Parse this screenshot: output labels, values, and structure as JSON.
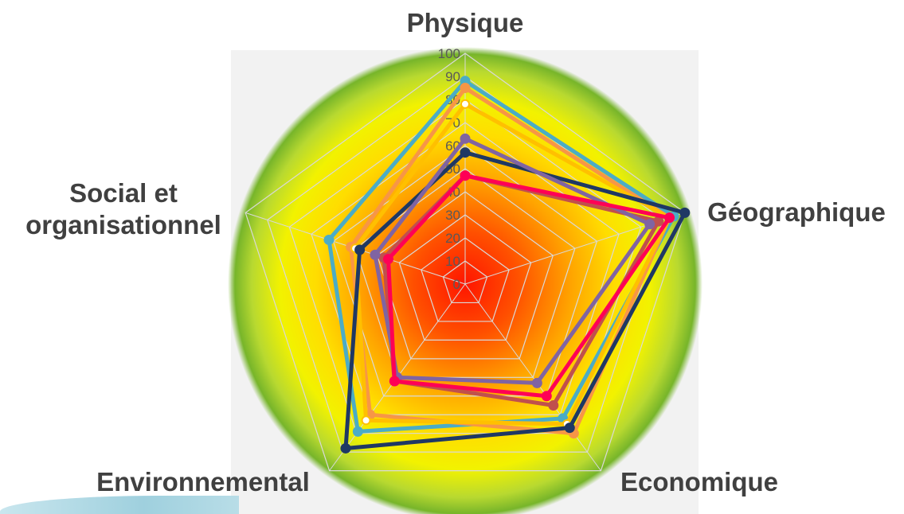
{
  "chart_data": {
    "type": "radar",
    "axes": [
      "Physique",
      "Géographique",
      "Economique",
      "Environnemental",
      "Social et organisationnel"
    ],
    "axis_label_lines": [
      [
        "Physique"
      ],
      [
        "Géographique"
      ],
      [
        "Economique"
      ],
      [
        "Environnemental"
      ],
      [
        "Social et",
        "organisationnel"
      ]
    ],
    "ticks": [
      "0",
      "10",
      "20",
      "30",
      "40",
      "50",
      "60",
      "70",
      "80",
      "90",
      "100"
    ],
    "range": [
      0,
      100
    ],
    "grid": true,
    "legend": "none",
    "series": [
      {
        "color": "#4BACC6",
        "values": [
          88,
          95,
          72,
          79,
          62
        ]
      },
      {
        "color": "#F79646",
        "values": [
          85,
          93,
          80,
          70,
          52
        ]
      },
      {
        "color": "#FFC000",
        "values": [
          78,
          93,
          75,
          73,
          50
        ],
        "marker": "ring"
      },
      {
        "color": "#C0504D",
        "values": [
          47,
          88,
          65,
          52,
          37
        ]
      },
      {
        "color": "#1F3864",
        "values": [
          57,
          100,
          77,
          88,
          48
        ]
      },
      {
        "color": "#8064A2",
        "values": [
          63,
          84,
          53,
          50,
          41
        ]
      },
      {
        "color": "#FF0055",
        "values": [
          47,
          93,
          60,
          52,
          35
        ]
      }
    ],
    "colors": {
      "background_center": "#FF1500",
      "background_edge": "#77B52A",
      "panel": "#F2F2F2",
      "gridline": "#D9D9D9"
    }
  }
}
